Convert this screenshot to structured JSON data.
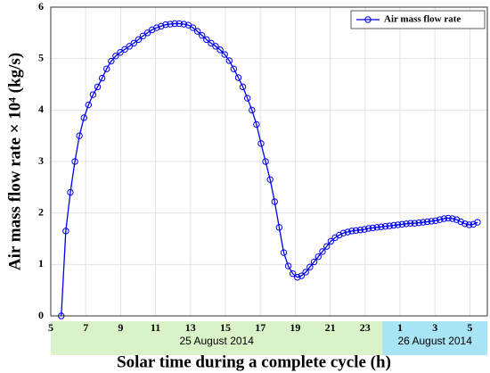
{
  "chart_data": {
    "type": "line",
    "x_label": "Solar time during a complete cycle (h)",
    "y_label": "Air mass flow rate × 10⁴ (kg/s)",
    "legend": "top-right",
    "grid": true,
    "xlim": [
      5,
      30
    ],
    "ylim": [
      0,
      6
    ],
    "xticks": [
      5,
      7,
      9,
      11,
      13,
      15,
      17,
      19,
      21,
      23,
      {
        "value": 25,
        "label": "1"
      },
      {
        "value": 27,
        "label": "3"
      },
      {
        "value": 29,
        "label": "5"
      }
    ],
    "yticks": [
      0,
      1,
      2,
      3,
      4,
      5,
      6
    ],
    "bands": [
      {
        "label": "25 August 2014",
        "start": 5,
        "end": 24,
        "color": "#d9f2c8"
      },
      {
        "label": "26 August 2014",
        "start": 24,
        "end": 30,
        "color": "#a8e4f4"
      }
    ],
    "x": [
      5.6,
      5.86,
      6.12,
      6.38,
      6.64,
      6.9,
      7.16,
      7.42,
      7.68,
      7.94,
      8.2,
      8.46,
      8.72,
      8.98,
      9.24,
      9.5,
      9.76,
      10.02,
      10.28,
      10.54,
      10.8,
      11.06,
      11.32,
      11.58,
      11.84,
      12.1,
      12.36,
      12.62,
      12.88,
      13.14,
      13.4,
      13.66,
      13.92,
      14.18,
      14.44,
      14.7,
      14.96,
      15.22,
      15.48,
      15.74,
      16.0,
      16.26,
      16.52,
      16.78,
      17.04,
      17.3,
      17.56,
      17.82,
      18.08,
      18.34,
      18.6,
      18.86,
      19.12,
      19.36,
      19.6,
      19.84,
      20.08,
      20.32,
      20.56,
      20.8,
      21.04,
      21.28,
      21.52,
      21.76,
      22.0,
      22.24,
      22.48,
      22.72,
      22.96,
      23.2,
      23.44,
      23.68,
      23.92,
      24.16,
      24.4,
      24.64,
      24.88,
      25.12,
      25.36,
      25.6,
      25.84,
      26.08,
      26.32,
      26.56,
      26.8,
      27.04,
      27.28,
      27.52,
      27.76,
      28.0,
      28.24,
      28.48,
      28.72,
      28.96,
      29.2,
      29.44
    ],
    "series": [
      {
        "name": "Air mass flow rate",
        "color": "#0000ee",
        "values": [
          0,
          1.65,
          2.4,
          3.0,
          3.5,
          3.85,
          4.1,
          4.3,
          4.45,
          4.62,
          4.8,
          4.95,
          5.05,
          5.12,
          5.18,
          5.24,
          5.3,
          5.37,
          5.44,
          5.5,
          5.56,
          5.6,
          5.63,
          5.66,
          5.67,
          5.68,
          5.68,
          5.67,
          5.65,
          5.6,
          5.53,
          5.45,
          5.37,
          5.3,
          5.24,
          5.17,
          5.08,
          4.96,
          4.8,
          4.63,
          4.45,
          4.23,
          4.0,
          3.72,
          3.35,
          3.0,
          2.65,
          2.22,
          1.72,
          1.23,
          0.97,
          0.82,
          0.75,
          0.78,
          0.85,
          0.95,
          1.05,
          1.15,
          1.25,
          1.35,
          1.45,
          1.52,
          1.57,
          1.61,
          1.63,
          1.65,
          1.66,
          1.67,
          1.68,
          1.7,
          1.71,
          1.72,
          1.73,
          1.74,
          1.75,
          1.76,
          1.77,
          1.78,
          1.79,
          1.8,
          1.8,
          1.81,
          1.82,
          1.83,
          1.84,
          1.85,
          1.87,
          1.89,
          1.9,
          1.89,
          1.87,
          1.83,
          1.79,
          1.77,
          1.78,
          1.82
        ]
      }
    ]
  }
}
